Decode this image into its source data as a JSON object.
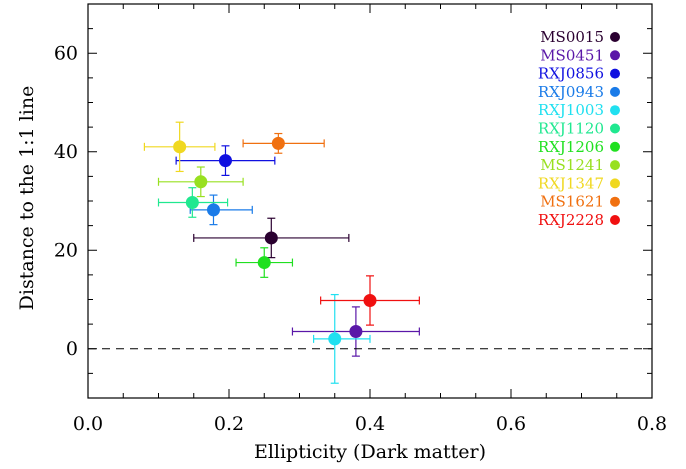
{
  "chart_data": {
    "type": "scatter",
    "title": "",
    "xlabel": "Ellipticity (Dark matter)",
    "ylabel": "Distance to the 1:1 line",
    "xlim": [
      0.0,
      0.8
    ],
    "ylim": [
      -10,
      70
    ],
    "x_ticks": [
      0.0,
      0.2,
      0.4,
      0.6,
      0.8
    ],
    "x_tick_labels": [
      "0.0",
      "0.2",
      "0.4",
      "0.6",
      "0.8"
    ],
    "y_ticks": [
      0,
      20,
      40,
      60
    ],
    "y_tick_labels": [
      "0",
      "20",
      "40",
      "60"
    ],
    "reference_line": {
      "y": 0,
      "style": "dashed"
    },
    "legend_placement": "top-right",
    "grid": false,
    "series": [
      {
        "name": "MS0015",
        "color": "#2a0030",
        "x": 0.26,
        "y": 22.5,
        "xerr": [
          0.11,
          0.11
        ],
        "yerr": [
          4.0,
          4.0
        ]
      },
      {
        "name": "MS0451",
        "color": "#5a17a8",
        "x": 0.38,
        "y": 3.5,
        "xerr": [
          0.09,
          0.09
        ],
        "yerr": [
          5.0,
          5.0
        ]
      },
      {
        "name": "RXJ0856",
        "color": "#1010e0",
        "x": 0.195,
        "y": 38.2,
        "xerr": [
          0.07,
          0.07
        ],
        "yerr": [
          3.0,
          3.0
        ]
      },
      {
        "name": "RXJ0943",
        "color": "#1a7be8",
        "x": 0.178,
        "y": 28.2,
        "xerr": [
          0.033,
          0.055
        ],
        "yerr": [
          3.0,
          3.0
        ]
      },
      {
        "name": "RXJ1003",
        "color": "#20e0f0",
        "x": 0.35,
        "y": 2.0,
        "xerr": [
          0.03,
          0.05
        ],
        "yerr": [
          9.0,
          9.0
        ]
      },
      {
        "name": "RXJ1120",
        "color": "#20e890",
        "x": 0.148,
        "y": 29.7,
        "xerr": [
          0.048,
          0.05
        ],
        "yerr": [
          3.0,
          3.0
        ]
      },
      {
        "name": "RXJ1206",
        "color": "#20e020",
        "x": 0.25,
        "y": 17.5,
        "xerr": [
          0.04,
          0.04
        ],
        "yerr": [
          3.0,
          3.0
        ]
      },
      {
        "name": "MS1241",
        "color": "#98e020",
        "x": 0.16,
        "y": 33.9,
        "xerr": [
          0.06,
          0.06
        ],
        "yerr": [
          3.0,
          3.0
        ]
      },
      {
        "name": "RXJ1347",
        "color": "#f0d820",
        "x": 0.13,
        "y": 41.0,
        "xerr": [
          0.05,
          0.05
        ],
        "yerr": [
          5.0,
          5.0
        ]
      },
      {
        "name": "MS1621",
        "color": "#f07010",
        "x": 0.27,
        "y": 41.7,
        "xerr": [
          0.05,
          0.065
        ],
        "yerr": [
          2.0,
          2.0
        ]
      },
      {
        "name": "RXJ2228",
        "color": "#f01010",
        "x": 0.4,
        "y": 9.8,
        "xerr": [
          0.07,
          0.07
        ],
        "yerr": [
          5.0,
          5.0
        ]
      }
    ]
  }
}
